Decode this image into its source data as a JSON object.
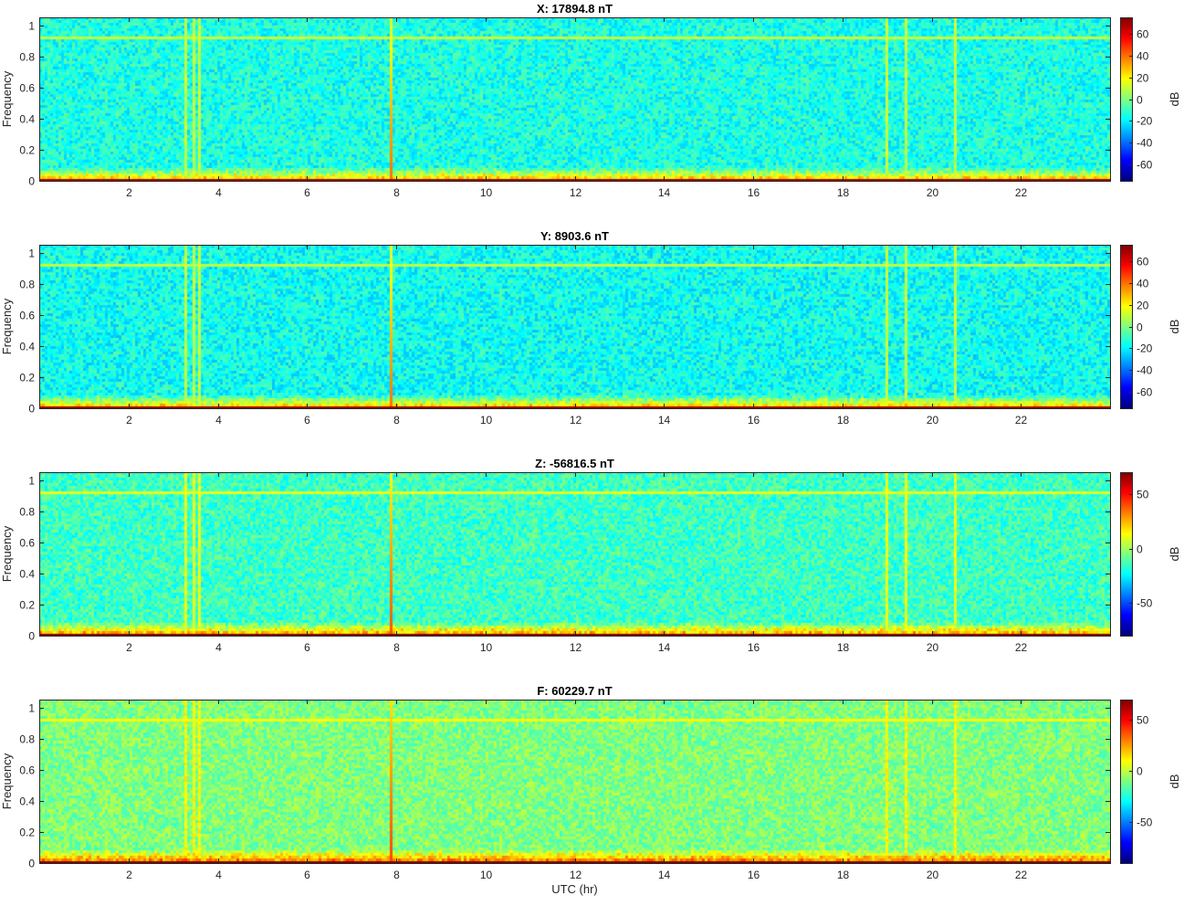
{
  "figure": {
    "xlabel": "UTC (hr)",
    "ylabel": "Frequency",
    "colorbar_label": "dB",
    "colormap": "jet"
  },
  "chart_data": [
    {
      "type": "heatmap",
      "title": "X: 17894.8 nT",
      "ylabel": "Frequency",
      "xlim": [
        0,
        24
      ],
      "ylim": [
        0,
        1.05
      ],
      "x_ticks": [
        2,
        4,
        6,
        8,
        10,
        12,
        14,
        16,
        18,
        20,
        22
      ],
      "y_ticks": [
        0,
        0.2,
        0.4,
        0.6,
        0.8,
        1
      ],
      "clim": [
        -75,
        75
      ],
      "cbar_ticks": [
        -60,
        -40,
        -20,
        0,
        20,
        40,
        60
      ],
      "features": {
        "horizontal_line_freq": 0.92,
        "spike_hours": [
          7.9
        ],
        "burst_hours": [
          3.3,
          3.45,
          3.6,
          19.0,
          19.4,
          20.5
        ],
        "background_db": -15
      }
    },
    {
      "type": "heatmap",
      "title": "Y: 8903.6 nT",
      "ylabel": "Frequency",
      "xlim": [
        0,
        24
      ],
      "ylim": [
        0,
        1.05
      ],
      "x_ticks": [
        2,
        4,
        6,
        8,
        10,
        12,
        14,
        16,
        18,
        20,
        22
      ],
      "y_ticks": [
        0,
        0.2,
        0.4,
        0.6,
        0.8,
        1
      ],
      "clim": [
        -75,
        75
      ],
      "cbar_ticks": [
        -60,
        -40,
        -20,
        0,
        20,
        40,
        60
      ],
      "features": {
        "horizontal_line_freq": 0.92,
        "spike_hours": [
          7.9
        ],
        "burst_hours": [
          3.3,
          3.45,
          3.6,
          19.0,
          19.4,
          20.5
        ],
        "background_db": -17
      }
    },
    {
      "type": "heatmap",
      "title": "Z: -56816.5 nT",
      "ylabel": "Frequency",
      "xlim": [
        0,
        24
      ],
      "ylim": [
        0,
        1.05
      ],
      "x_ticks": [
        2,
        4,
        6,
        8,
        10,
        12,
        14,
        16,
        18,
        20,
        22
      ],
      "y_ticks": [
        0,
        0.2,
        0.4,
        0.6,
        0.8,
        1
      ],
      "clim": [
        -80,
        70
      ],
      "cbar_ticks": [
        -50,
        0,
        50
      ],
      "features": {
        "horizontal_line_freq": 0.92,
        "spike_hours": [
          7.9
        ],
        "burst_hours": [
          3.3,
          3.45,
          3.6,
          19.0,
          19.4,
          20.5
        ],
        "background_db": -15
      }
    },
    {
      "type": "heatmap",
      "title": "F: 60229.7 nT",
      "ylabel": "Frequency",
      "xlabel": "UTC (hr)",
      "xlim": [
        0,
        24
      ],
      "ylim": [
        0,
        1.05
      ],
      "x_ticks": [
        2,
        4,
        6,
        8,
        10,
        12,
        14,
        16,
        18,
        20,
        22
      ],
      "y_ticks": [
        0,
        0.2,
        0.4,
        0.6,
        0.8,
        1
      ],
      "clim": [
        -90,
        70
      ],
      "cbar_ticks": [
        -50,
        0,
        50
      ],
      "features": {
        "horizontal_line_freq": 0.92,
        "spike_hours": [
          7.9
        ],
        "burst_hours": [
          3.3,
          3.45,
          3.6,
          19.0,
          19.4,
          20.5
        ],
        "background_db": -10
      }
    }
  ]
}
